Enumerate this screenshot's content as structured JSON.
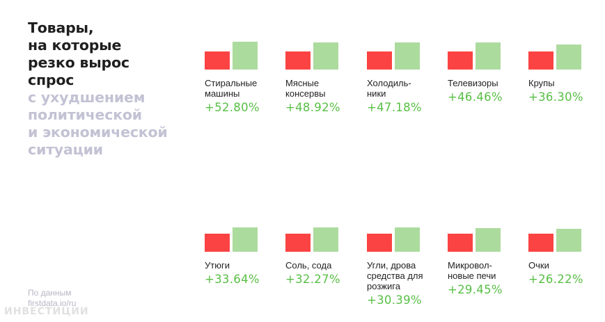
{
  "headline": {
    "dark": "Товары,\nна которые\nрезко вырос\nспрос",
    "light": "с ухудшением\nполитической\nи экономической\nситуации"
  },
  "source": {
    "line1": "По данным",
    "line2": "firstdata.io/ru"
  },
  "watermark": "ИНВЕСТИЦИИ",
  "colors": {
    "before": "#fb4343",
    "after": "#acdb9e",
    "percent": "#58bf45"
  },
  "chart_data": {
    "type": "bar",
    "categories": [
      "Стиральные\nмашины",
      "Мясные\nконсервы",
      "Холодиль-\nники",
      "Телевизоры",
      "Крупы",
      "Утюги",
      "Соль, сода",
      "Угли, дрова\nсредства для\nрозжига",
      "Микровол-\nновые печи",
      "Очки"
    ],
    "growth_labels": [
      "+52.80%",
      "+48.92%",
      "+47.18%",
      "+46.46%",
      "+36.30%",
      "+33.64%",
      "+32.27%",
      "+30.39%",
      "+29.45%",
      "+26.22%"
    ],
    "series": [
      {
        "values": [
          100,
          100,
          100,
          100,
          100,
          100,
          100,
          100,
          100,
          100
        ]
      },
      {
        "values": [
          152.8,
          148.92,
          147.18,
          146.46,
          136.3,
          133.64,
          132.27,
          130.39,
          129.45,
          126.22
        ]
      }
    ]
  }
}
